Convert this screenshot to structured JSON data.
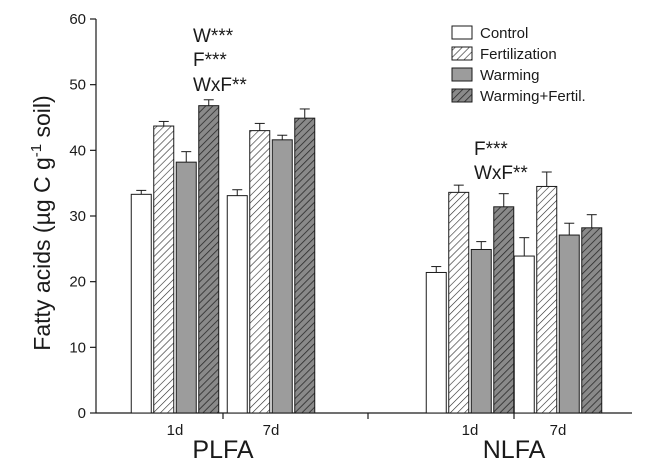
{
  "chart_data": {
    "type": "bar",
    "ylabel_main": "Fatty acids (µg C g",
    "ylabel_sup": "-1",
    "ylabel_tail": " soil)",
    "ylim": [
      0,
      60
    ],
    "yticks": [
      0,
      10,
      20,
      30,
      40,
      50,
      60
    ],
    "groups": [
      {
        "label": "PLFA",
        "subgroups": [
          "1d",
          "7d"
        ]
      },
      {
        "label": "NLFA",
        "subgroups": [
          "1d",
          "7d"
        ]
      }
    ],
    "categories": [
      "PLFA 1d",
      "PLFA 7d",
      "NLFA 1d",
      "NLFA 7d"
    ],
    "series": [
      {
        "name": "Control",
        "values": [
          33.3,
          33.1,
          21.4,
          23.9
        ],
        "errors": [
          0.6,
          0.9,
          0.9,
          2.8
        ]
      },
      {
        "name": "Fertilization",
        "values": [
          43.7,
          43.0,
          33.6,
          34.5
        ],
        "errors": [
          0.7,
          1.1,
          1.1,
          2.2
        ]
      },
      {
        "name": "Warming",
        "values": [
          38.2,
          41.6,
          24.9,
          27.1
        ],
        "errors": [
          1.6,
          0.7,
          1.2,
          1.8
        ]
      },
      {
        "name": "Warming+Fertil.",
        "values": [
          46.8,
          44.9,
          31.4,
          28.2
        ],
        "errors": [
          0.9,
          1.4,
          2.0,
          2.0
        ]
      }
    ],
    "annotations": [
      {
        "group": "PLFA",
        "lines": [
          "W***",
          "F***",
          "WxF**"
        ]
      },
      {
        "group": "NLFA",
        "lines": [
          "F***",
          "WxF**"
        ]
      }
    ],
    "legend_position": "top-right",
    "grid": false,
    "colors": {
      "axis": "#1a1a1a",
      "control_fill": "#ffffff",
      "fert_fill": "#ffffff",
      "warming_fill": "#9c9c9c",
      "warm_fert_fill": "#8a8a8a",
      "hatch": "#2a2a2a"
    },
    "patterns": [
      "none",
      "hatch-light",
      "solid",
      "hatch-dark"
    ]
  }
}
